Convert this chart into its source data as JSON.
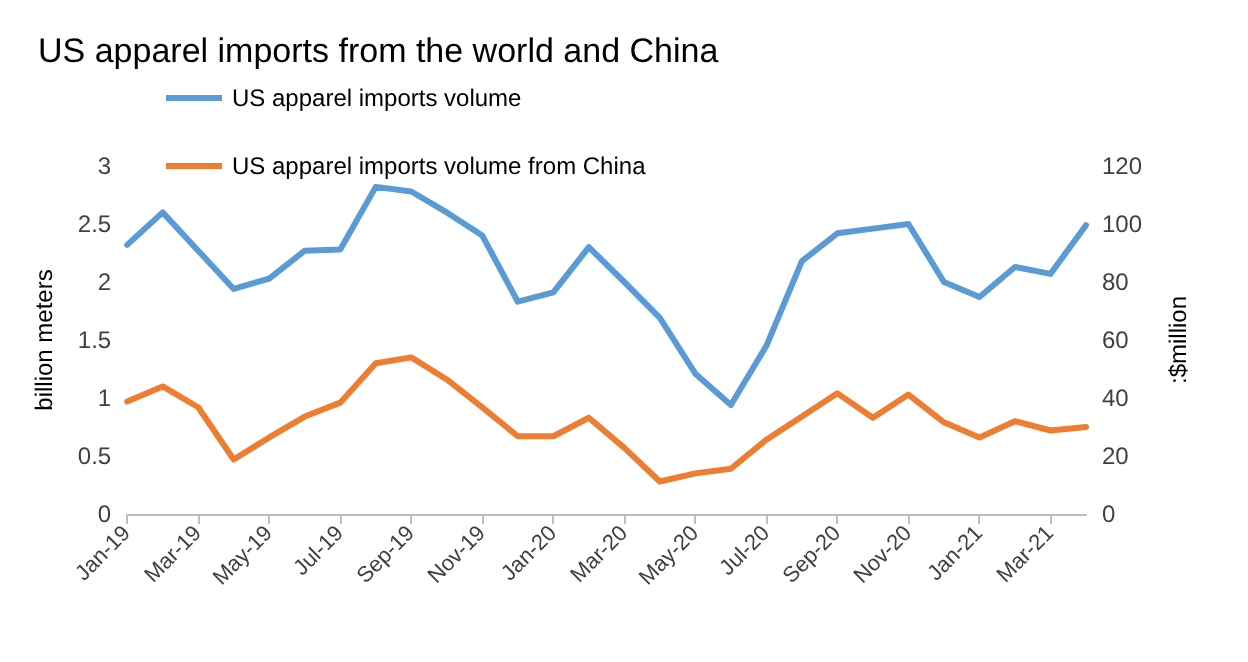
{
  "chart_data": {
    "type": "line",
    "title": "US apparel imports from the world and China",
    "ylabel": "billion meters",
    "y2label": ":$million",
    "categories": [
      "Jan-19",
      null,
      "Mar-19",
      null,
      "May-19",
      null,
      "Jul-19",
      null,
      "Sep-19",
      null,
      "Nov-19",
      null,
      "Jan-20",
      null,
      "Mar-20",
      null,
      "May-20",
      null,
      "Jul-20",
      null,
      "Sep-20",
      null,
      "Nov-20",
      null,
      "Jan-21",
      null,
      "Mar-21",
      null
    ],
    "series": [
      {
        "name": "US apparel imports volume",
        "color": "#5b9bd5",
        "values": [
          2.32,
          2.6,
          2.27,
          1.94,
          2.03,
          2.27,
          2.28,
          2.82,
          2.78,
          2.6,
          2.4,
          1.83,
          1.91,
          2.3,
          2.0,
          1.69,
          1.21,
          0.94,
          1.45,
          2.18,
          2.42,
          2.46,
          2.5,
          2.0,
          1.87,
          2.13,
          2.07,
          2.49
        ]
      },
      {
        "name": "US apparel imports volume from China",
        "color": "#ed7d31",
        "values": [
          0.97,
          1.1,
          0.92,
          0.47,
          0.66,
          0.84,
          0.96,
          1.3,
          1.35,
          1.16,
          0.92,
          0.67,
          0.67,
          0.83,
          0.57,
          0.28,
          0.35,
          0.39,
          0.64,
          0.84,
          1.04,
          0.83,
          1.03,
          0.79,
          0.66,
          0.8,
          0.72,
          0.75
        ]
      }
    ],
    "ylim": [
      0,
      3
    ],
    "yticks": [
      0,
      0.5,
      1,
      1.5,
      2,
      2.5,
      3
    ],
    "y2lim": [
      0,
      120
    ],
    "y2ticks": [
      0,
      20,
      40,
      60,
      80,
      100,
      120
    ],
    "grid": false,
    "legend": "top",
    "marker": "none",
    "line_style": "solid"
  }
}
